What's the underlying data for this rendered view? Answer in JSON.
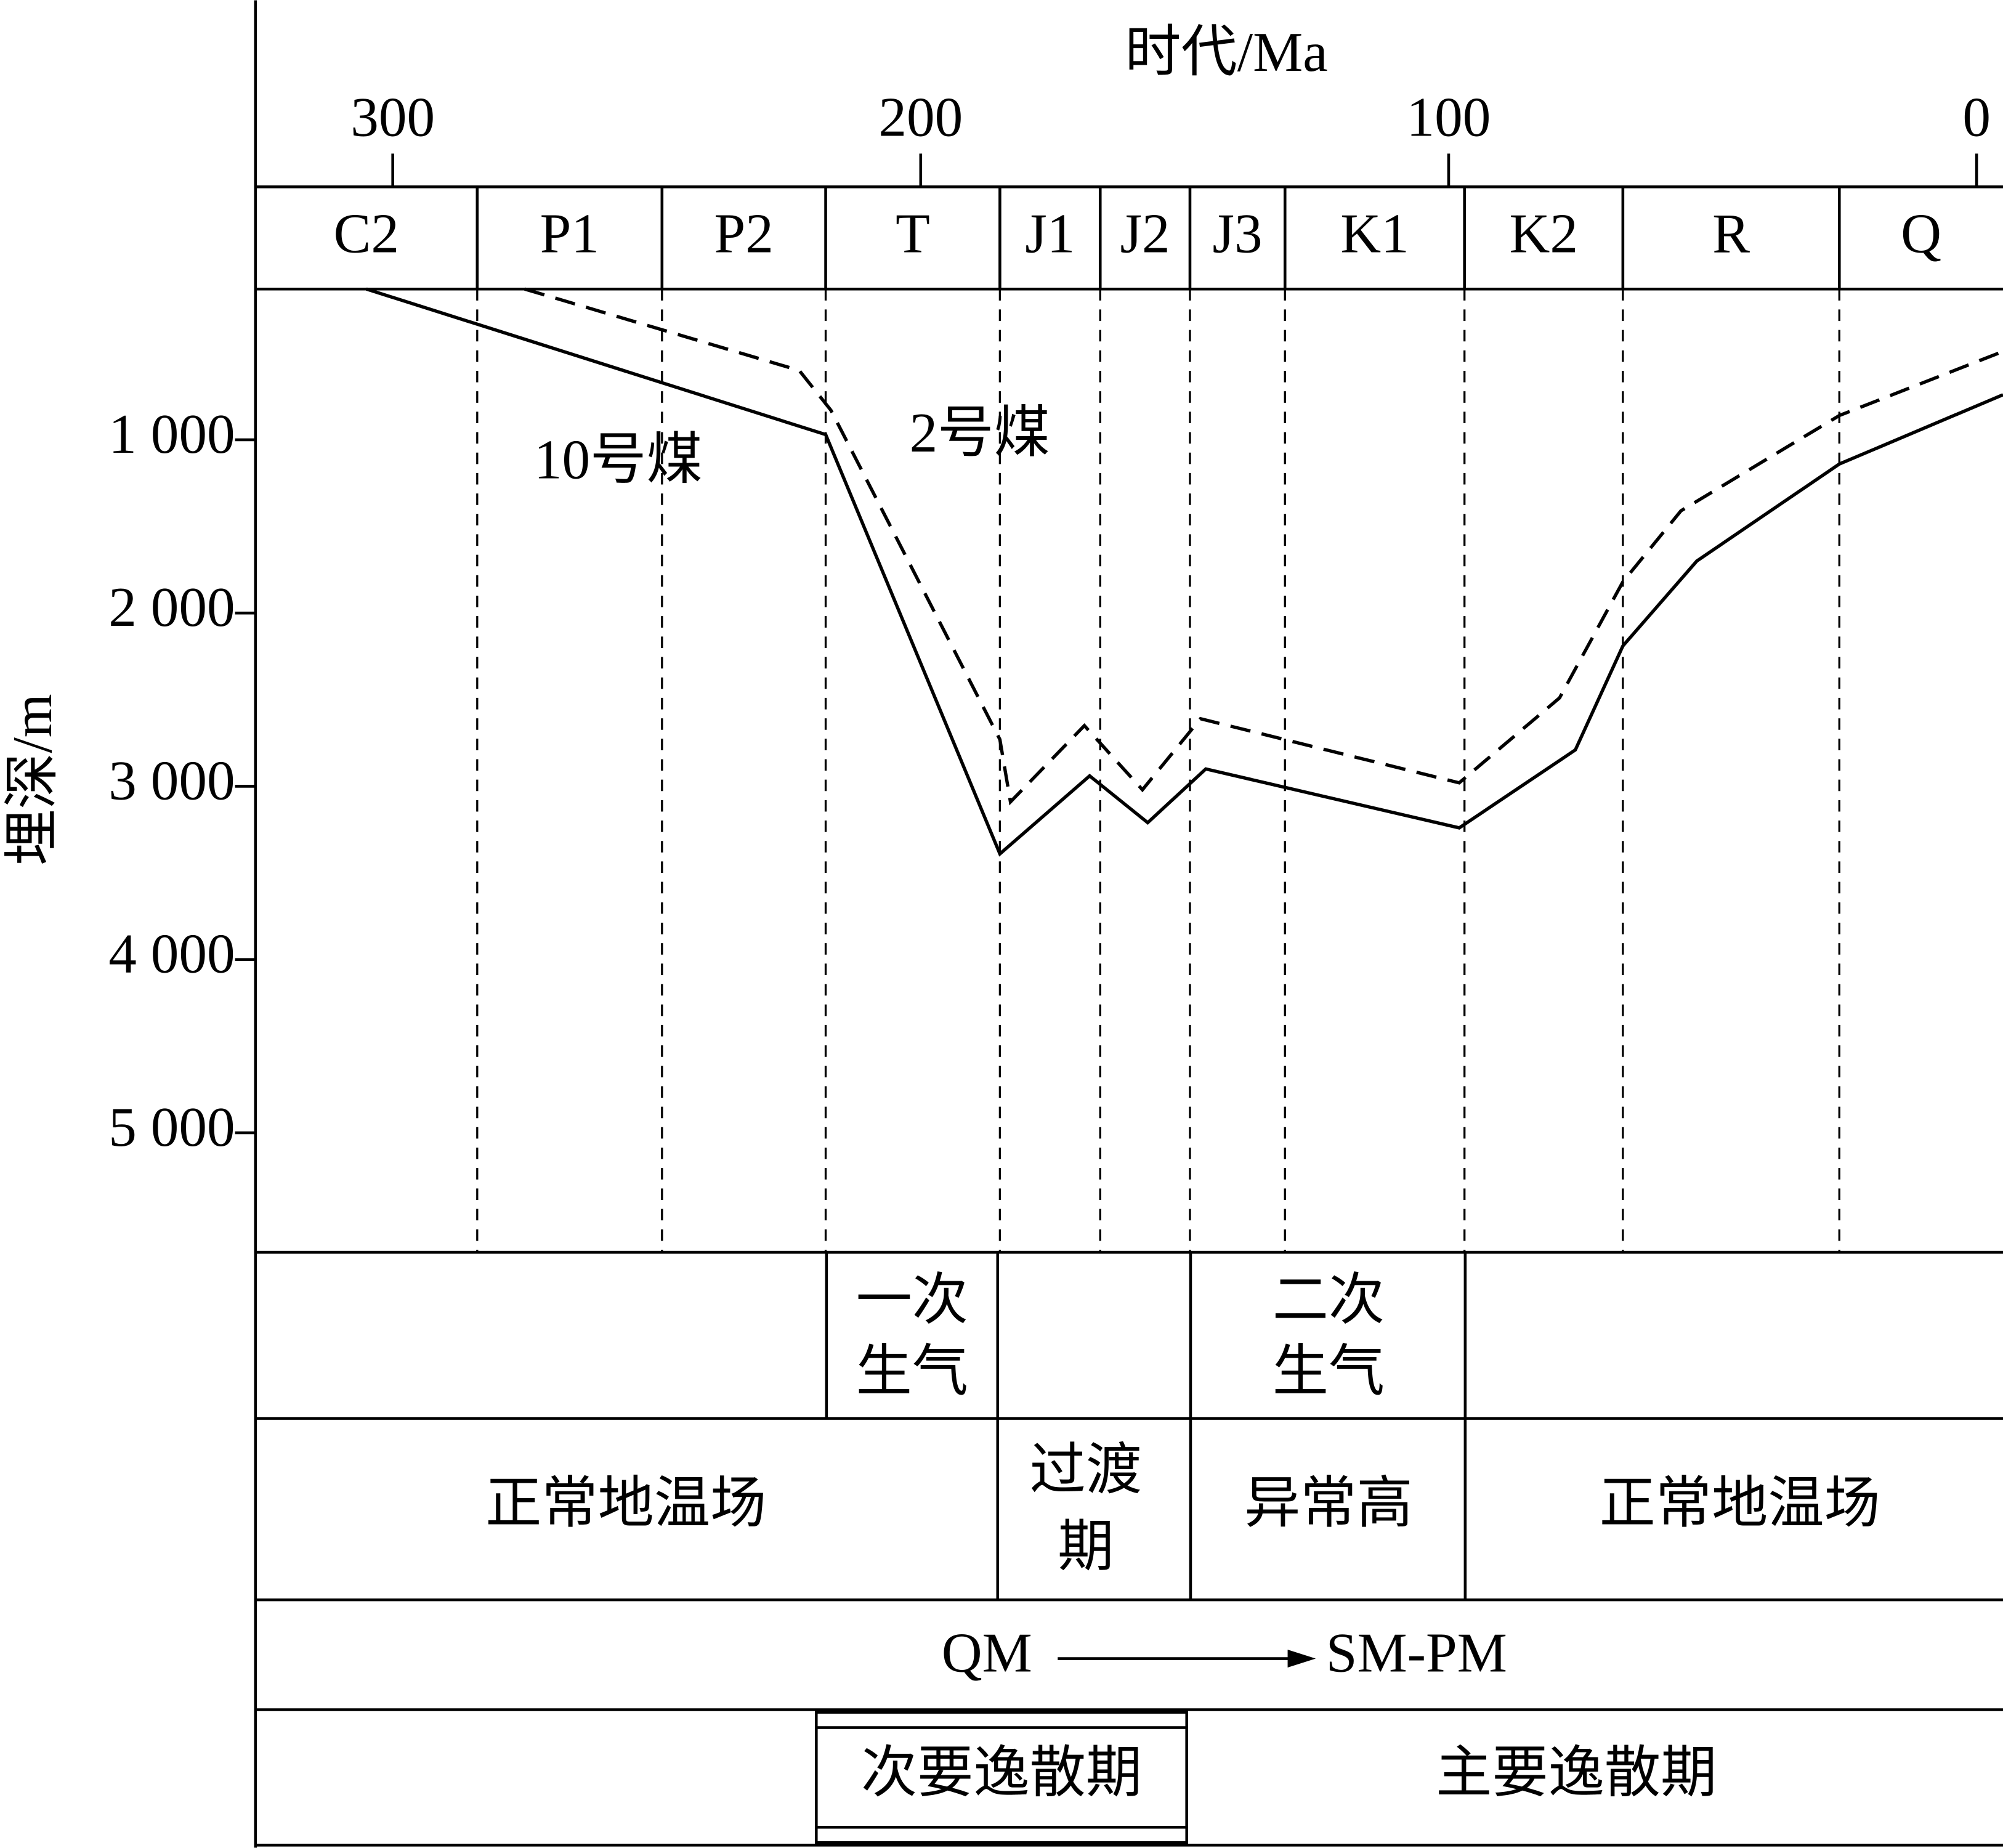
{
  "chart_data": {
    "type": "line",
    "title": "时代/Ma",
    "xlabel": "时代/Ma",
    "ylabel": "埋深/m",
    "xlim": [
      326,
      -5
    ],
    "xticks": [
      300,
      200,
      100,
      0
    ],
    "ylim": [
      130,
      5690
    ],
    "y_inverted": true,
    "yticks": [
      {
        "value": 1000,
        "label": "1 000"
      },
      {
        "value": 2000,
        "label": "2 000"
      },
      {
        "value": 3000,
        "label": "3 000"
      },
      {
        "value": 4000,
        "label": "4 000"
      },
      {
        "value": 5000,
        "label": "5 000"
      }
    ],
    "periods": [
      "C2",
      "P1",
      "P2",
      "T",
      "J1",
      "J2",
      "J3",
      "K1",
      "K2",
      "R",
      "Q"
    ],
    "period_boundaries": [
      326,
      284,
      249,
      218,
      185,
      166,
      149,
      131,
      97,
      67,
      26,
      -5
    ],
    "series": [
      {
        "name": "10号煤",
        "color": "#000000",
        "line_style": "solid",
        "x": [
          305,
          218,
          185,
          168,
          157,
          146,
          98,
          76,
          67,
          53,
          26,
          -5
        ],
        "values": [
          130,
          970,
          3390,
          2940,
          3210,
          2900,
          3240,
          2790,
          2190,
          1700,
          1140,
          740
        ]
      },
      {
        "name": "2号煤",
        "color": "#000000",
        "line_style": "dashed",
        "x": [
          275,
          223,
          217,
          185,
          183,
          169,
          158,
          147,
          98,
          79,
          67,
          56,
          26,
          -5
        ],
        "values": [
          130,
          600,
          830,
          2730,
          3090,
          2650,
          3020,
          2610,
          2980,
          2490,
          1820,
          1410,
          860,
          490
        ]
      }
    ]
  },
  "table": {
    "gas_generation": [
      [
        "一次",
        "生气"
      ],
      [
        "二次",
        "生气"
      ]
    ],
    "thermal": [
      "正常地温场",
      [
        "过渡",
        "期"
      ],
      "异常高",
      "正常地温场"
    ],
    "evolution": [
      "QM",
      "SM-PM"
    ],
    "dissipation": [
      "次要逸散期",
      "主要逸散期"
    ]
  }
}
